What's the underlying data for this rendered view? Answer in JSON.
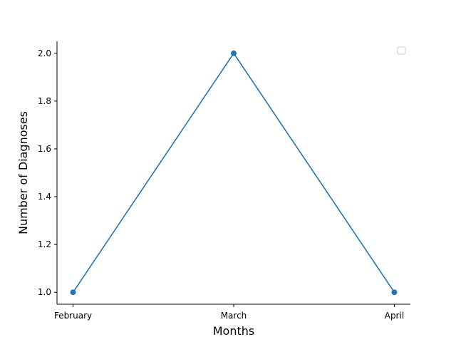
{
  "chart_data": {
    "type": "line",
    "categories": [
      "February",
      "March",
      "April"
    ],
    "series": [
      {
        "values": [
          1,
          2,
          1
        ],
        "color": "#1f77b4",
        "marker": "circle"
      }
    ],
    "xlabel": "Months",
    "ylabel": "Number of Diagnoses",
    "yticks": [
      "1.0",
      "1.2",
      "1.4",
      "1.6",
      "1.8",
      "2.0"
    ],
    "ylim": [
      0.95,
      2.05
    ],
    "grid": false,
    "legend": {
      "placement": "top-right",
      "entries": []
    },
    "spines": [
      "left",
      "bottom"
    ]
  }
}
